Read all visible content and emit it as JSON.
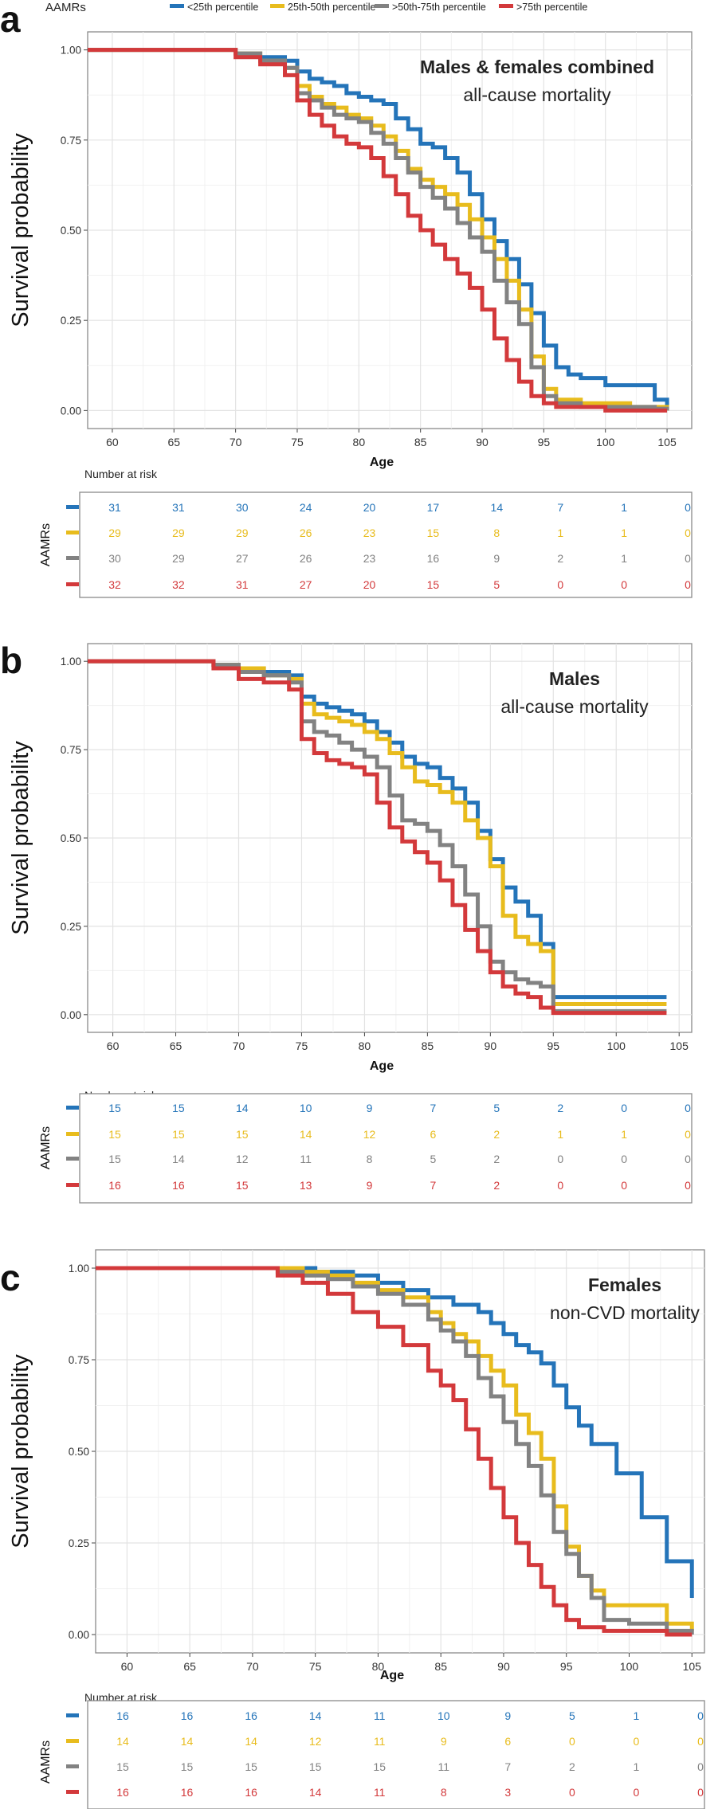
{
  "legend": {
    "title": "AAMRs",
    "entries": [
      "<25th percentile",
      "25th-50th percentile",
      ">50th-75th percentile",
      ">75th percentile"
    ]
  },
  "colors": [
    "#2474b9",
    "#e8bc1d",
    "#828282",
    "#d3393b"
  ],
  "risk_label": "Number at risk",
  "risk_ylabel": "AAMRs",
  "chart_data": [
    {
      "panel": "a",
      "type": "line",
      "title": "Males & females combined",
      "subtitle": "all-cause mortality",
      "xlabel": "Age",
      "ylabel": "Survival probability",
      "xlim": [
        58,
        107
      ],
      "ylim": [
        -0.05,
        1.05
      ],
      "xticks": [
        60,
        65,
        70,
        75,
        80,
        85,
        90,
        95,
        100,
        105
      ],
      "yticks": [
        0,
        0.25,
        0.5,
        0.75,
        1
      ],
      "ytick_labels": [
        "0.00",
        "0.25",
        "0.50",
        "0.75",
        "1.00"
      ],
      "series": [
        {
          "name": "<25th percentile",
          "x": [
            58,
            68,
            70,
            72,
            74,
            75,
            76,
            77,
            78,
            79,
            80,
            81,
            82,
            83,
            84,
            85,
            86,
            87,
            88,
            89,
            90,
            91,
            92,
            93,
            94,
            95,
            96,
            97,
            98,
            100,
            102,
            104,
            105
          ],
          "y": [
            1,
            1,
            0.99,
            0.98,
            0.97,
            0.94,
            0.92,
            0.91,
            0.9,
            0.88,
            0.87,
            0.86,
            0.85,
            0.81,
            0.78,
            0.74,
            0.73,
            0.7,
            0.66,
            0.6,
            0.53,
            0.47,
            0.42,
            0.35,
            0.27,
            0.18,
            0.12,
            0.1,
            0.09,
            0.07,
            0.07,
            0.03,
            0.01
          ]
        },
        {
          "name": "25th-50th percentile",
          "x": [
            58,
            68,
            70,
            72,
            74,
            75,
            76,
            77,
            78,
            79,
            80,
            81,
            82,
            83,
            84,
            85,
            86,
            87,
            88,
            89,
            90,
            91,
            92,
            93,
            94,
            95,
            96,
            98,
            100,
            102,
            104,
            105
          ],
          "y": [
            1,
            1,
            0.99,
            0.97,
            0.95,
            0.9,
            0.87,
            0.85,
            0.84,
            0.82,
            0.81,
            0.79,
            0.76,
            0.72,
            0.67,
            0.64,
            0.62,
            0.6,
            0.57,
            0.53,
            0.48,
            0.42,
            0.36,
            0.28,
            0.15,
            0.06,
            0.03,
            0.02,
            0.02,
            0.01,
            0.01,
            0
          ]
        },
        {
          "name": ">50th-75th percentile",
          "x": [
            58,
            68,
            70,
            72,
            74,
            75,
            76,
            77,
            78,
            79,
            80,
            81,
            82,
            83,
            84,
            85,
            86,
            87,
            88,
            89,
            90,
            91,
            92,
            93,
            94,
            95,
            96,
            98,
            100,
            102,
            104,
            105
          ],
          "y": [
            1,
            1,
            0.99,
            0.97,
            0.95,
            0.88,
            0.86,
            0.84,
            0.82,
            0.81,
            0.8,
            0.77,
            0.74,
            0.7,
            0.66,
            0.62,
            0.59,
            0.56,
            0.52,
            0.48,
            0.44,
            0.36,
            0.3,
            0.24,
            0.12,
            0.04,
            0.02,
            0.01,
            0.01,
            0.01,
            0.005,
            0
          ]
        },
        {
          "name": ">75th percentile",
          "x": [
            58,
            68,
            70,
            72,
            74,
            75,
            76,
            77,
            78,
            79,
            80,
            81,
            82,
            83,
            84,
            85,
            86,
            87,
            88,
            89,
            90,
            91,
            92,
            93,
            94,
            95,
            96,
            98,
            100,
            102,
            104,
            105
          ],
          "y": [
            1,
            1,
            0.98,
            0.96,
            0.93,
            0.86,
            0.82,
            0.79,
            0.76,
            0.74,
            0.73,
            0.7,
            0.65,
            0.6,
            0.54,
            0.5,
            0.46,
            0.42,
            0.38,
            0.34,
            0.28,
            0.2,
            0.14,
            0.08,
            0.04,
            0.02,
            0.01,
            0.01,
            0,
            0,
            0,
            0
          ]
        }
      ],
      "risk_table": [
        [
          31,
          31,
          30,
          24,
          20,
          17,
          14,
          7,
          1,
          0
        ],
        [
          29,
          29,
          29,
          26,
          23,
          15,
          8,
          1,
          1,
          0
        ],
        [
          30,
          29,
          27,
          26,
          23,
          16,
          9,
          2,
          1,
          0
        ],
        [
          32,
          32,
          31,
          27,
          20,
          15,
          5,
          0,
          0,
          0
        ]
      ]
    },
    {
      "panel": "b",
      "type": "line",
      "title": "Males",
      "subtitle": "all-cause mortality",
      "xlabel": "Age",
      "ylabel": "Survival probability",
      "xlim": [
        58,
        106
      ],
      "ylim": [
        -0.05,
        1.05
      ],
      "xticks": [
        60,
        65,
        70,
        75,
        80,
        85,
        90,
        95,
        100,
        105
      ],
      "yticks": [
        0,
        0.25,
        0.5,
        0.75,
        1
      ],
      "ytick_labels": [
        "0.00",
        "0.25",
        "0.50",
        "0.75",
        "1.00"
      ],
      "series": [
        {
          "name": "<25th percentile",
          "x": [
            58,
            64,
            68,
            70,
            72,
            74,
            75,
            76,
            77,
            78,
            79,
            80,
            81,
            82,
            83,
            84,
            85,
            86,
            87,
            88,
            89,
            90,
            91,
            92,
            93,
            94,
            95,
            104
          ],
          "y": [
            1,
            1,
            0.99,
            0.98,
            0.97,
            0.96,
            0.9,
            0.88,
            0.87,
            0.86,
            0.85,
            0.83,
            0.8,
            0.77,
            0.73,
            0.71,
            0.7,
            0.67,
            0.64,
            0.6,
            0.52,
            0.44,
            0.36,
            0.32,
            0.28,
            0.2,
            0.05,
            0.05
          ]
        },
        {
          "name": "25th-50th percentile",
          "x": [
            58,
            64,
            68,
            70,
            72,
            74,
            75,
            76,
            77,
            78,
            79,
            80,
            81,
            82,
            83,
            84,
            85,
            86,
            87,
            88,
            89,
            90,
            91,
            92,
            93,
            94,
            95,
            104
          ],
          "y": [
            1,
            1,
            0.99,
            0.98,
            0.96,
            0.95,
            0.88,
            0.85,
            0.84,
            0.83,
            0.82,
            0.8,
            0.78,
            0.74,
            0.7,
            0.66,
            0.65,
            0.63,
            0.6,
            0.55,
            0.5,
            0.42,
            0.28,
            0.22,
            0.2,
            0.18,
            0.03,
            0.03
          ]
        },
        {
          "name": ">50th-75th percentile",
          "x": [
            58,
            64,
            68,
            70,
            72,
            74,
            75,
            76,
            77,
            78,
            79,
            80,
            81,
            82,
            83,
            84,
            85,
            86,
            87,
            88,
            89,
            90,
            91,
            92,
            93,
            94,
            95,
            104
          ],
          "y": [
            1,
            1,
            0.99,
            0.97,
            0.96,
            0.94,
            0.83,
            0.8,
            0.79,
            0.77,
            0.75,
            0.73,
            0.7,
            0.62,
            0.55,
            0.54,
            0.52,
            0.48,
            0.42,
            0.34,
            0.25,
            0.15,
            0.12,
            0.1,
            0.09,
            0.08,
            0.01,
            0.01
          ]
        },
        {
          "name": ">75th percentile",
          "x": [
            58,
            64,
            68,
            70,
            72,
            74,
            75,
            76,
            77,
            78,
            79,
            80,
            81,
            82,
            83,
            84,
            85,
            86,
            87,
            88,
            89,
            90,
            91,
            92,
            93,
            94,
            95,
            104
          ],
          "y": [
            1,
            1,
            0.98,
            0.95,
            0.94,
            0.92,
            0.78,
            0.74,
            0.72,
            0.71,
            0.7,
            0.68,
            0.6,
            0.53,
            0.49,
            0.46,
            0.43,
            0.38,
            0.31,
            0.24,
            0.18,
            0.12,
            0.08,
            0.06,
            0.05,
            0.02,
            0.005,
            0.005
          ]
        }
      ],
      "risk_table": [
        [
          15,
          15,
          14,
          10,
          9,
          7,
          5,
          2,
          0,
          0
        ],
        [
          15,
          15,
          15,
          14,
          12,
          6,
          2,
          1,
          1,
          0
        ],
        [
          15,
          14,
          12,
          11,
          8,
          5,
          2,
          0,
          0,
          0
        ],
        [
          16,
          16,
          15,
          13,
          9,
          7,
          2,
          0,
          0,
          0
        ]
      ]
    },
    {
      "panel": "c",
      "type": "line",
      "title": "Females",
      "subtitle": "non-CVD mortality",
      "xlabel": "Age",
      "ylabel": "Survival probability",
      "xlim": [
        57.5,
        106
      ],
      "ylim": [
        -0.05,
        1.05
      ],
      "xticks": [
        60,
        65,
        70,
        75,
        80,
        85,
        90,
        95,
        100,
        105
      ],
      "yticks": [
        0,
        0.25,
        0.5,
        0.75,
        1
      ],
      "ytick_labels": [
        "0.00",
        "0.25",
        "0.50",
        "0.75",
        "1.00"
      ],
      "series": [
        {
          "name": "<25th percentile",
          "x": [
            57.5,
            70,
            75,
            78,
            80,
            82,
            84,
            86,
            88,
            89,
            90,
            91,
            92,
            93,
            94,
            95,
            96,
            97,
            99,
            101,
            103,
            105
          ],
          "y": [
            1,
            1,
            0.99,
            0.98,
            0.96,
            0.94,
            0.92,
            0.9,
            0.88,
            0.85,
            0.82,
            0.79,
            0.77,
            0.74,
            0.68,
            0.62,
            0.57,
            0.52,
            0.44,
            0.32,
            0.2,
            0.1
          ]
        },
        {
          "name": "25th-50th percentile",
          "x": [
            57.5,
            70,
            74,
            76,
            78,
            80,
            82,
            84,
            85,
            86,
            87,
            88,
            89,
            90,
            91,
            92,
            93,
            94,
            95,
            96,
            97,
            98,
            100,
            103,
            105
          ],
          "y": [
            1,
            1,
            0.99,
            0.98,
            0.96,
            0.94,
            0.92,
            0.88,
            0.85,
            0.82,
            0.8,
            0.76,
            0.72,
            0.68,
            0.6,
            0.55,
            0.48,
            0.35,
            0.24,
            0.16,
            0.12,
            0.08,
            0.08,
            0.03,
            0.01
          ]
        },
        {
          "name": ">50th-75th percentile",
          "x": [
            57.5,
            70,
            72,
            74,
            76,
            78,
            80,
            82,
            84,
            85,
            86,
            87,
            88,
            89,
            90,
            91,
            92,
            93,
            94,
            95,
            96,
            97,
            98,
            100,
            103,
            105
          ],
          "y": [
            1,
            1,
            0.99,
            0.98,
            0.97,
            0.95,
            0.93,
            0.9,
            0.86,
            0.83,
            0.8,
            0.76,
            0.7,
            0.65,
            0.58,
            0.52,
            0.46,
            0.38,
            0.28,
            0.22,
            0.16,
            0.1,
            0.04,
            0.03,
            0.01,
            0
          ]
        },
        {
          "name": ">75th percentile",
          "x": [
            57.5,
            70,
            72,
            74,
            76,
            78,
            80,
            82,
            84,
            85,
            86,
            87,
            88,
            89,
            90,
            91,
            92,
            93,
            94,
            95,
            96,
            98,
            100,
            103,
            105
          ],
          "y": [
            1,
            1,
            0.98,
            0.96,
            0.93,
            0.88,
            0.84,
            0.79,
            0.72,
            0.68,
            0.64,
            0.56,
            0.48,
            0.4,
            0.32,
            0.25,
            0.19,
            0.13,
            0.08,
            0.04,
            0.02,
            0.01,
            0.01,
            0,
            0
          ]
        }
      ],
      "risk_table": [
        [
          16,
          16,
          16,
          14,
          11,
          10,
          9,
          5,
          1,
          0
        ],
        [
          14,
          14,
          14,
          12,
          11,
          9,
          6,
          0,
          0,
          0
        ],
        [
          15,
          15,
          15,
          15,
          15,
          11,
          7,
          2,
          1,
          0
        ],
        [
          16,
          16,
          16,
          14,
          11,
          8,
          3,
          0,
          0,
          0
        ]
      ]
    }
  ]
}
